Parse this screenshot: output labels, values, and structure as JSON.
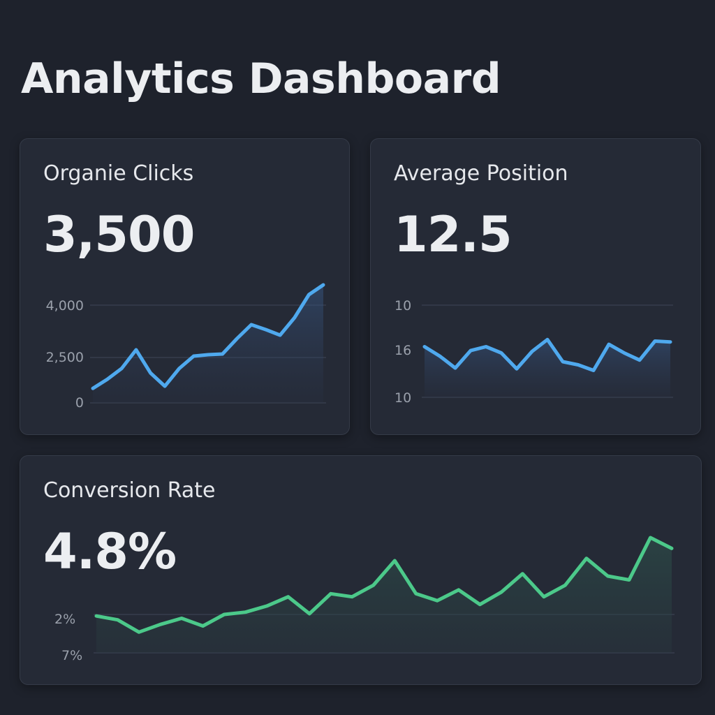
{
  "page": {
    "title": "Analytics Dashboard"
  },
  "cards": [
    {
      "title": "Organie Clicks",
      "value": "3,500"
    },
    {
      "title": "Average Position",
      "value": "12.5"
    },
    {
      "title": "Conversion Rate",
      "value": "4.8%"
    }
  ],
  "chart_data": [
    {
      "type": "area",
      "color": "#4fa9ee",
      "yticks": [
        {
          "label": "4,000",
          "value": 4000
        },
        {
          "label": "2,500",
          "value": 2500
        },
        {
          "label": "0",
          "value": 0
        }
      ],
      "values": [
        800,
        1300,
        1900,
        2720,
        1650,
        920,
        1900,
        2540,
        2580,
        2600,
        3040,
        3440,
        3300,
        3140,
        3640,
        4300,
        4580
      ]
    },
    {
      "type": "area",
      "color": "#4fa9ee",
      "yticks": [
        {
          "label": "10"
        },
        {
          "label": "16"
        },
        {
          "label": "10"
        }
      ],
      "values": [
        16.4,
        15.2,
        13.7,
        15.9,
        16.4,
        15.6,
        13.6,
        15.8,
        17.3,
        14.5,
        14.1,
        13.4,
        16.7,
        15.6,
        14.7,
        17.1,
        17.0
      ]
    },
    {
      "type": "area",
      "color": "#4cc98a",
      "yticks": [
        {
          "label": "2%"
        },
        {
          "label": "7%"
        }
      ],
      "values": [
        1.8,
        1.3,
        -0.3,
        0.7,
        1.5,
        0.5,
        2.0,
        2.3,
        3.1,
        4.3,
        2.1,
        4.7,
        4.3,
        5.8,
        9.0,
        4.7,
        3.8,
        5.2,
        3.3,
        4.9,
        7.3,
        4.3,
        5.8,
        9.3,
        7.0,
        6.5,
        12.0,
        10.6
      ]
    }
  ]
}
